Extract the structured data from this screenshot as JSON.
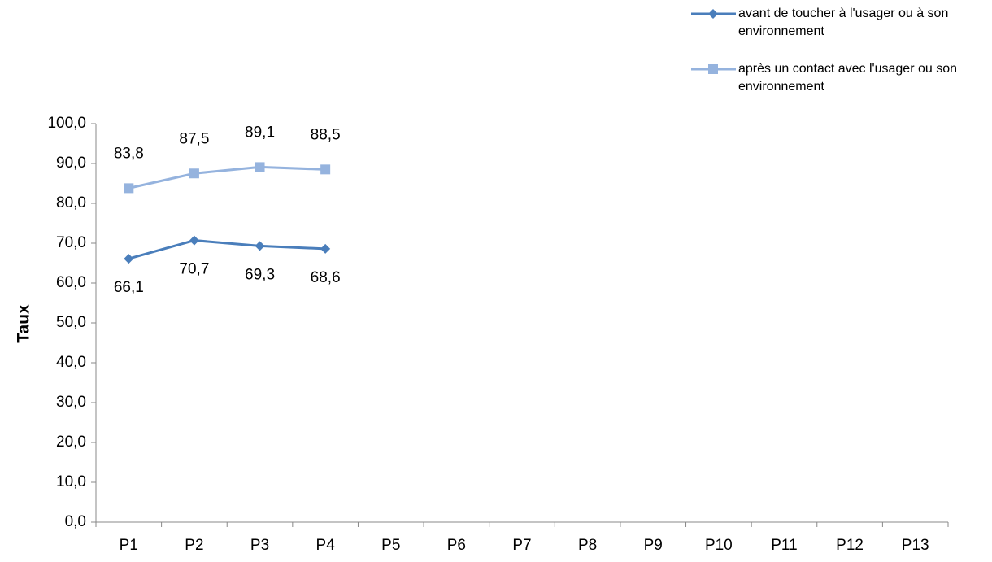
{
  "chart_data": {
    "type": "line",
    "y_label": "Taux",
    "categories": [
      "P1",
      "P2",
      "P3",
      "P4",
      "P5",
      "P6",
      "P7",
      "P8",
      "P9",
      "P10",
      "P11",
      "P12",
      "P13"
    ],
    "series": [
      {
        "name": "avant de toucher à l'usager ou à son environnement",
        "color": "#4a7ebb",
        "marker": "diamond",
        "values": [
          66.1,
          70.7,
          69.3,
          68.6,
          null,
          null,
          null,
          null,
          null,
          null,
          null,
          null,
          null
        ],
        "value_labels": [
          "66,1",
          "70,7",
          "69,3",
          "68,6",
          null,
          null,
          null,
          null,
          null,
          null,
          null,
          null,
          null
        ],
        "label_position": "below"
      },
      {
        "name": "après un contact avec l'usager ou son environnement",
        "color": "#95b3de",
        "marker": "square",
        "values": [
          83.8,
          87.5,
          89.1,
          88.5,
          null,
          null,
          null,
          null,
          null,
          null,
          null,
          null,
          null
        ],
        "value_labels": [
          "83,8",
          "87,5",
          "89,1",
          "88,5",
          null,
          null,
          null,
          null,
          null,
          null,
          null,
          null,
          null
        ],
        "label_position": "above"
      }
    ],
    "ylim": [
      0,
      100
    ],
    "yticks": [
      {
        "value": 0,
        "label": "0,0"
      },
      {
        "value": 10,
        "label": "10,0"
      },
      {
        "value": 20,
        "label": "20,0"
      },
      {
        "value": 30,
        "label": "30,0"
      },
      {
        "value": 40,
        "label": "40,0"
      },
      {
        "value": 50,
        "label": "50,0"
      },
      {
        "value": 60,
        "label": "60,0"
      },
      {
        "value": 70,
        "label": "70,0"
      },
      {
        "value": 80,
        "label": "80,0"
      },
      {
        "value": 90,
        "label": "90,0"
      },
      {
        "value": 100,
        "label": "100,0"
      }
    ],
    "grid": false,
    "legend": "top-right"
  }
}
